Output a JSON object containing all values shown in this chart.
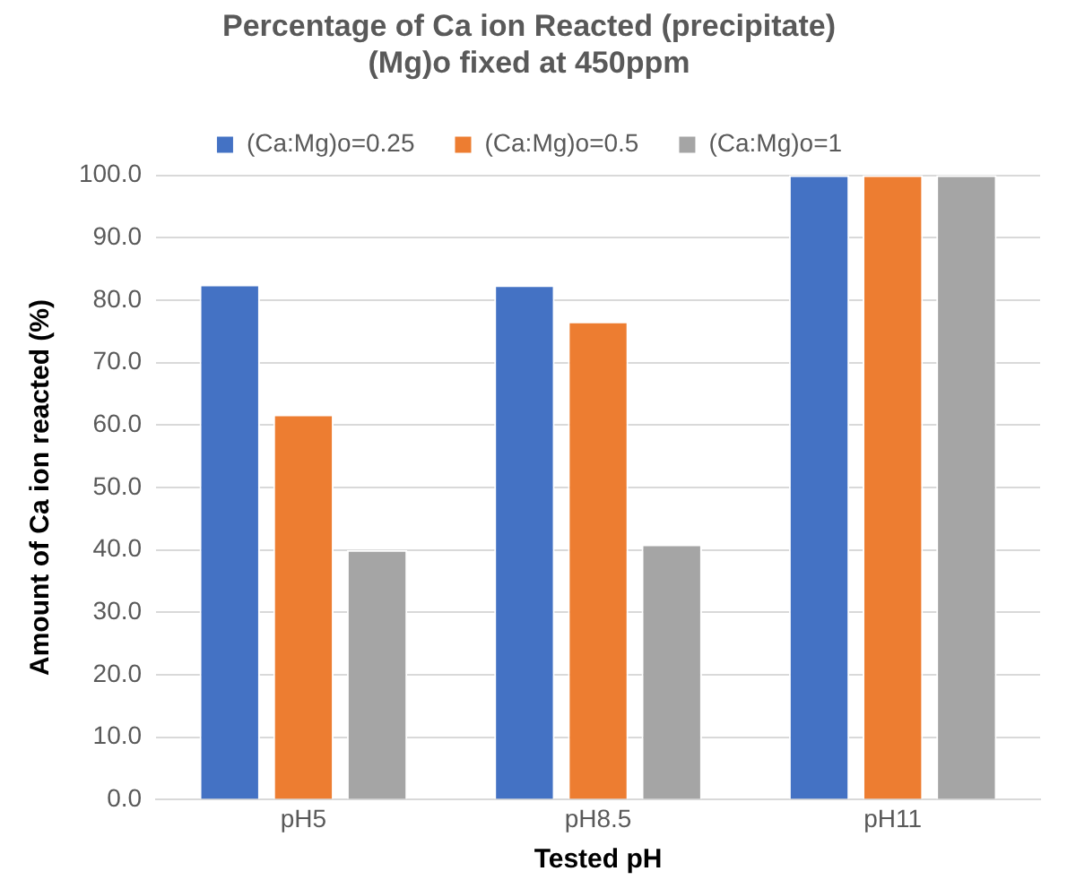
{
  "chart_data": {
    "type": "bar",
    "title": [
      "Percentage of Ca ion Reacted (precipitate)",
      "(Mg)o fixed at 450ppm"
    ],
    "xlabel": "Tested pH",
    "ylabel": "Amount of Ca ion reacted (%)",
    "categories": [
      "pH5",
      "pH8.5",
      "pH11"
    ],
    "series": [
      {
        "name": "(Ca:Mg)o=0.25",
        "color": "#4472c4",
        "values": [
          82.5,
          82.4,
          100
        ]
      },
      {
        "name": "(Ca:Mg)o=0.5",
        "color": "#ed7d31",
        "values": [
          61.7,
          76.6,
          100
        ]
      },
      {
        "name": "(Ca:Mg)o=1",
        "color": "#a5a5a5",
        "values": [
          40.0,
          40.9,
          100
        ]
      }
    ],
    "ylim": [
      0,
      100
    ],
    "yticks": [
      {
        "value": 0,
        "label": "0.0"
      },
      {
        "value": 10,
        "label": "10.0"
      },
      {
        "value": 20,
        "label": "20.0"
      },
      {
        "value": 30,
        "label": "30.0"
      },
      {
        "value": 40,
        "label": "40.0"
      },
      {
        "value": 50,
        "label": "50.0"
      },
      {
        "value": 60,
        "label": "60.0"
      },
      {
        "value": 70,
        "label": "70.0"
      },
      {
        "value": 80,
        "label": "80.0"
      },
      {
        "value": 90,
        "label": "90.0"
      },
      {
        "value": 100,
        "label": "100.0"
      }
    ],
    "grid": "y",
    "legend": "top"
  }
}
